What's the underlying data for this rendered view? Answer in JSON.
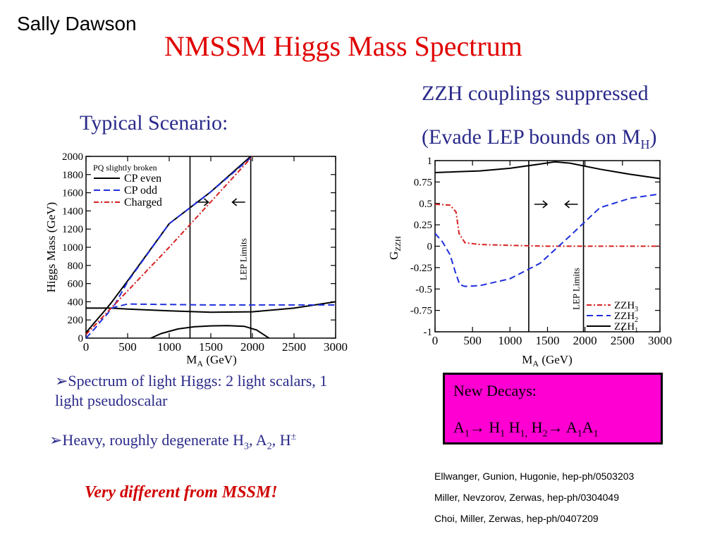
{
  "slide": {
    "author": "Sally Dawson",
    "title": "NMSSM Higgs Mass Spectrum",
    "left_subtitle": "Typical Scenario:",
    "right_subtitle_1": "ZZH couplings suppressed",
    "right_subtitle_2": {
      "text": "(Evade LEP bounds on M",
      "sub": "H",
      "close": ")"
    },
    "bullet_1": "➢Spectrum of light Higgs:  2 light scalars, 1 light pseudoscalar",
    "bullet_2": {
      "pre": "➢Heavy, roughly degenerate H",
      "s1": "3",
      "mid1": ", A",
      "s2": "2",
      "mid2": ", H",
      "sup": "±"
    },
    "conclusion": "Very different from MSSM!",
    "decays_box": {
      "line1": "New Decays:",
      "line2": {
        "a": "A",
        "a1": "1",
        "arrow1": "→ H",
        "b1": "1",
        "c": " H",
        "c1": "1,",
        "d": " H",
        "d1": "2",
        "arrow2": "→ A",
        "e1": "1",
        "f": "A",
        "f1": "1"
      }
    },
    "references": [
      "Ellwanger, Gunion, Hugonie, hep-ph/0503203",
      "Miller, Nevzorov, Zerwas, hep-ph/0304049",
      "Choi, Miller, Zerwas, hep-ph/0407209"
    ],
    "colors": {
      "title": "#e00000",
      "text_blue": "#2a2a8a",
      "box": "#ff00d2",
      "conclusion": "#d00000"
    }
  },
  "chart_data": [
    {
      "type": "line",
      "xlabel": "M_A (GeV)",
      "xlabel_main": "M",
      "xlabel_sub": "A",
      "xlabel_unit": " (GeV)",
      "ylabel": "Higgs Mass (GeV)",
      "xlim": [
        0,
        3000
      ],
      "ylim": [
        0,
        2000
      ],
      "xticks": [
        "0",
        "500",
        "1000",
        "1500",
        "2000",
        "2500",
        "3000"
      ],
      "yticks": [
        "0",
        "200",
        "400",
        "600",
        "800",
        "1000",
        "1200",
        "1400",
        "1600",
        "1800",
        "2000"
      ],
      "legend_title": "PQ slightly broken",
      "legend_position": "top-left",
      "annotation": "LEP Limits",
      "vlines": [
        1250,
        1980
      ],
      "series": [
        {
          "name": "CP even",
          "color": "#000000",
          "dash": "solid",
          "x": [
            0,
            100,
            200,
            300,
            500,
            1000,
            1500,
            2000,
            2500,
            3000
          ],
          "y": [
            330,
            330,
            330,
            330,
            320,
            300,
            285,
            290,
            330,
            400
          ]
        },
        {
          "name": "CP even",
          "color": "#000000",
          "dash": "solid",
          "x": [
            780,
            900,
            1100,
            1300,
            1500,
            1700,
            1900,
            2050,
            2200
          ],
          "y": [
            0,
            50,
            100,
            125,
            135,
            138,
            130,
            90,
            0
          ]
        },
        {
          "name": "CP even",
          "color": "#000000",
          "dash": "solid",
          "x": [
            0,
            100,
            200,
            300,
            500,
            1000,
            1500,
            1980
          ],
          "y": [
            60,
            170,
            275,
            385,
            630,
            1260,
            1610,
            2000
          ]
        },
        {
          "name": "CP odd",
          "color": "#1f2fdd",
          "dash": "dashed",
          "x": [
            0,
            100,
            200,
            260,
            300,
            500,
            1000,
            1500,
            2000,
            2500,
            3000
          ],
          "y": [
            0,
            100,
            210,
            270,
            330,
            375,
            370,
            365,
            365,
            365,
            365
          ]
        },
        {
          "name": "CP odd",
          "color": "#1f2fdd",
          "dash": "dashed",
          "x": [
            340,
            500,
            1000,
            1500,
            2000
          ],
          "y": [
            360,
            620,
            1260,
            1610,
            2000
          ]
        },
        {
          "name": "Charged",
          "color": "#d62020",
          "dash": "dashdot",
          "x": [
            0,
            1000,
            2000
          ],
          "y": [
            40,
            1000,
            2000
          ]
        }
      ]
    },
    {
      "type": "line",
      "xlabel": "M_A (GeV)",
      "xlabel_main": "M",
      "xlabel_sub": "A",
      "xlabel_unit": " (GeV)",
      "ylabel": "G_ZZH",
      "ylabel_main": "G",
      "ylabel_sub": "ZZH",
      "xlim": [
        0,
        3000
      ],
      "ylim": [
        -1,
        1
      ],
      "xticks": [
        "0",
        "500",
        "1000",
        "1500",
        "2000",
        "2500",
        "3000"
      ],
      "yticks": [
        "-1",
        "-0.75",
        "-0.5",
        "-0.25",
        "0",
        "0.25",
        "0.5",
        "0.75",
        "1"
      ],
      "legend_position": "bottom-right",
      "annotation": "LEP Limits",
      "vlines": [
        1250,
        1980
      ],
      "series": [
        {
          "name": "ZZH",
          "sub": "3",
          "color": "#d62020",
          "dash": "dashdot",
          "x": [
            0,
            200,
            280,
            320,
            400,
            600,
            1000,
            1500,
            2000,
            2500,
            3000
          ],
          "y": [
            0.49,
            0.48,
            0.4,
            0.15,
            0.04,
            0.02,
            0.01,
            0.0,
            0.0,
            0.0,
            0.0
          ]
        },
        {
          "name": "ZZH",
          "sub": "2",
          "color": "#1f2fdd",
          "dash": "dashed",
          "x": [
            0,
            100,
            200,
            270,
            330,
            400,
            600,
            1000,
            1400,
            1800,
            2200,
            2600,
            3000
          ],
          "y": [
            0.15,
            0.05,
            -0.1,
            -0.3,
            -0.45,
            -0.47,
            -0.46,
            -0.38,
            -0.2,
            0.12,
            0.45,
            0.56,
            0.61
          ]
        },
        {
          "name": "ZZH",
          "sub": "1",
          "color": "#000000",
          "dash": "solid",
          "x": [
            0,
            300,
            600,
            1000,
            1400,
            1600,
            1800,
            2200,
            2600,
            3000
          ],
          "y": [
            0.86,
            0.87,
            0.88,
            0.91,
            0.96,
            0.985,
            0.97,
            0.9,
            0.84,
            0.79
          ]
        }
      ]
    }
  ]
}
